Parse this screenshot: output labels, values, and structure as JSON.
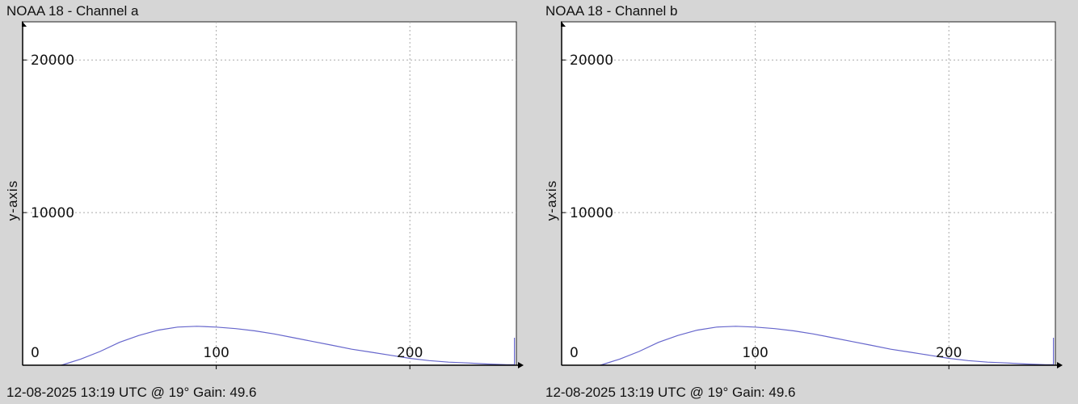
{
  "chart_data": [
    {
      "type": "line",
      "title": "NOAA 18 - Channel a",
      "xlabel": "",
      "ylabel": "y-axis",
      "footer": "12-08-2025 13:19 UTC @ 19° Gain: 49.6",
      "xlim": [
        0,
        255
      ],
      "ylim": [
        0,
        22500
      ],
      "x_ticks": [
        0,
        100,
        200
      ],
      "y_ticks": [
        10000,
        20000
      ],
      "y_zero_label": "0",
      "grid": true,
      "series": [
        {
          "color": "#6666cc",
          "x": [
            20,
            30,
            40,
            50,
            60,
            70,
            80,
            90,
            100,
            110,
            120,
            130,
            140,
            150,
            160,
            170,
            180,
            190,
            200,
            210,
            220,
            230,
            240,
            250,
            254,
            254
          ],
          "y": [
            0,
            400,
            900,
            1500,
            1950,
            2300,
            2500,
            2550,
            2500,
            2400,
            2250,
            2050,
            1800,
            1550,
            1300,
            1050,
            850,
            650,
            450,
            300,
            200,
            150,
            80,
            30,
            30,
            1800
          ]
        }
      ]
    },
    {
      "type": "line",
      "title": "NOAA 18 - Channel b",
      "xlabel": "",
      "ylabel": "y-axis",
      "footer": "12-08-2025 13:19 UTC @ 19° Gain: 49.6",
      "xlim": [
        0,
        255
      ],
      "ylim": [
        0,
        22500
      ],
      "x_ticks": [
        0,
        100,
        200
      ],
      "y_ticks": [
        10000,
        20000
      ],
      "y_zero_label": "0",
      "grid": true,
      "series": [
        {
          "color": "#6666cc",
          "x": [
            20,
            30,
            40,
            50,
            60,
            70,
            80,
            90,
            100,
            110,
            120,
            130,
            140,
            150,
            160,
            170,
            180,
            190,
            200,
            210,
            220,
            230,
            240,
            250,
            254,
            254
          ],
          "y": [
            0,
            400,
            900,
            1500,
            1950,
            2300,
            2500,
            2550,
            2500,
            2400,
            2250,
            2050,
            1800,
            1550,
            1300,
            1050,
            850,
            650,
            450,
            300,
            200,
            150,
            80,
            30,
            30,
            1800
          ]
        }
      ]
    }
  ]
}
